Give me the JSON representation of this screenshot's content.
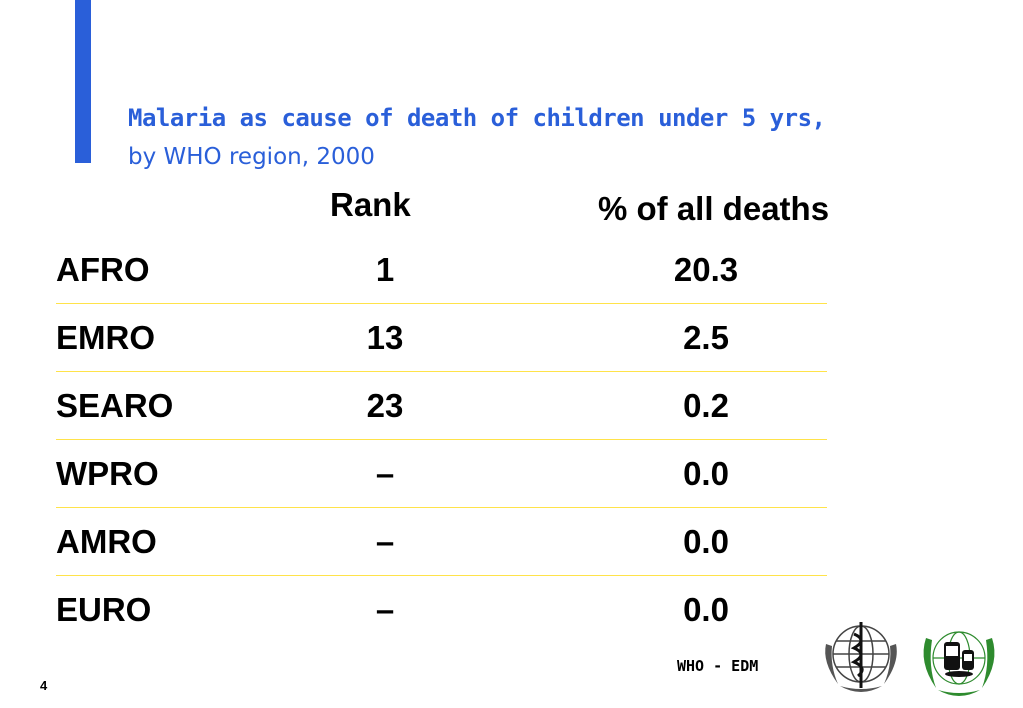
{
  "title": "Malaria as cause of death of children under 5 yrs,",
  "subtitle": "by WHO region, 2000",
  "headers": {
    "rank": "Rank",
    "percent": "% of all deaths"
  },
  "rows": [
    {
      "region": "AFRO",
      "rank": "1",
      "percent": "20.3"
    },
    {
      "region": "EMRO",
      "rank": "13",
      "percent": "2.5"
    },
    {
      "region": "SEARO",
      "rank": "23",
      "percent": "0.2"
    },
    {
      "region": "WPRO",
      "rank": "–",
      "percent": "0.0"
    },
    {
      "region": "AMRO",
      "rank": "–",
      "percent": "0.0"
    },
    {
      "region": "EURO",
      "rank": "–",
      "percent": "0.0"
    }
  ],
  "footer": {
    "page_number": "4",
    "label": "WHO - EDM"
  },
  "colors": {
    "accent": "#2a5fd9",
    "divider": "#ffe34a",
    "logo_green": "#2e8b2e"
  },
  "logos": [
    "who-emblem",
    "edm-emblem"
  ]
}
